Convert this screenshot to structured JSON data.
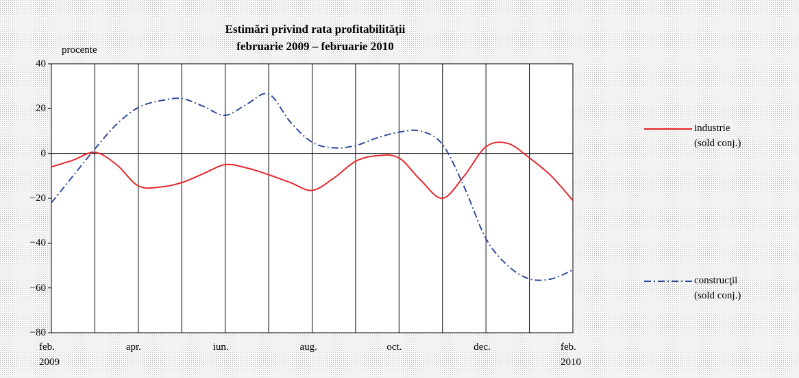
{
  "chart_data": {
    "type": "line",
    "title": "Estimări privind rata profitabilităţii\nfebruarie 2009 – februarie 2010",
    "y_label": "procente",
    "x": [
      0,
      0.5,
      1,
      1.5,
      2,
      2.5,
      3,
      3.5,
      4,
      4.5,
      5,
      5.5,
      6,
      6.5,
      7,
      7.5,
      8,
      8.5,
      9,
      9.5,
      10,
      10.5,
      11,
      11.5,
      12
    ],
    "series": [
      {
        "name": "industrie\n(sold conj.)",
        "color": "#e8262a",
        "dash": "solid",
        "values": [
          -6,
          -3,
          0.5,
          -5,
          -14.5,
          -15,
          -13,
          -9,
          -5,
          -6.5,
          -9.5,
          -13,
          -16.5,
          -11,
          -3.5,
          -1,
          -2,
          -12,
          -20,
          -10,
          3,
          4.5,
          -2,
          -10,
          -21
        ]
      },
      {
        "name": "construcţii\n(sold conj.)",
        "color": "#2e4a9e",
        "dash": "dashdot",
        "values": [
          -22,
          -10,
          2,
          13,
          20.5,
          23.5,
          24.5,
          21,
          17,
          22,
          26.5,
          14,
          5,
          2.5,
          3.5,
          7,
          9.5,
          10,
          4,
          -15,
          -38,
          -50,
          -56,
          -56,
          -52
        ]
      }
    ],
    "xlim": [
      0,
      12
    ],
    "xticks": [
      {
        "value": 0,
        "label": "feb.\n2009"
      },
      {
        "value": 1,
        "label": null
      },
      {
        "value": 2,
        "label": "apr."
      },
      {
        "value": 3,
        "label": null
      },
      {
        "value": 4,
        "label": "iun."
      },
      {
        "value": 5,
        "label": null
      },
      {
        "value": 6,
        "label": "aug."
      },
      {
        "value": 7,
        "label": null
      },
      {
        "value": 8,
        "label": "oct."
      },
      {
        "value": 9,
        "label": null
      },
      {
        "value": 10,
        "label": "dec."
      },
      {
        "value": 11,
        "label": null
      },
      {
        "value": 12,
        "label": "feb.\n2010"
      }
    ],
    "ylim": [
      -80,
      40
    ],
    "yticks": [
      {
        "value": -80,
        "label": "−80"
      },
      {
        "value": -60,
        "label": "−60"
      },
      {
        "value": -40,
        "label": "−40"
      },
      {
        "value": -20,
        "label": "−20"
      },
      0,
      20,
      40
    ],
    "grid": "x",
    "legend": "right"
  }
}
